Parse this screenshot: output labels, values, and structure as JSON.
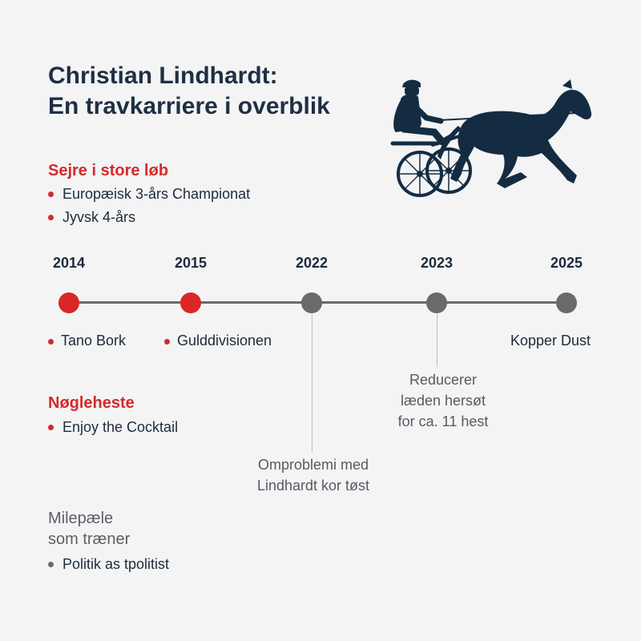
{
  "title": {
    "line1": "Christian Lindhardt:",
    "line2": "En travkarriere i overblik"
  },
  "illustration": {
    "icon": "harness-racing-sulky-icon",
    "color": "#142c42"
  },
  "wins": {
    "heading": "Sejre i store løb",
    "items": [
      "Europæisk 3-års Championat",
      "Jyvsk 4-års"
    ]
  },
  "timeline": {
    "years": [
      "2014",
      "2015",
      "2022",
      "2023",
      "2025"
    ],
    "node_colors": [
      "red",
      "red",
      "gray",
      "gray",
      "gray"
    ],
    "events": {
      "2014": "Tano Bork",
      "2015": "Gulddivisionen",
      "2025": "Kopper Dust"
    },
    "callouts": {
      "2022": [
        "Omproblemi med",
        "Lindhardt kor tøst"
      ],
      "2023": [
        "Reducerer",
        "læden hersøt",
        "for ca. 11 hest"
      ]
    }
  },
  "key_horses": {
    "heading": "Nøgleheste",
    "items": [
      "Enjoy the Cocktail"
    ]
  },
  "milestones": {
    "heading_line1": "Milepæle",
    "heading_line2": "som træner",
    "items": [
      "Politik as tpolitist"
    ]
  },
  "colors": {
    "accent_red": "#d42a2a",
    "node_gray": "#6a6a6a",
    "navy": "#1f2f44",
    "background": "#f4f4f5"
  }
}
